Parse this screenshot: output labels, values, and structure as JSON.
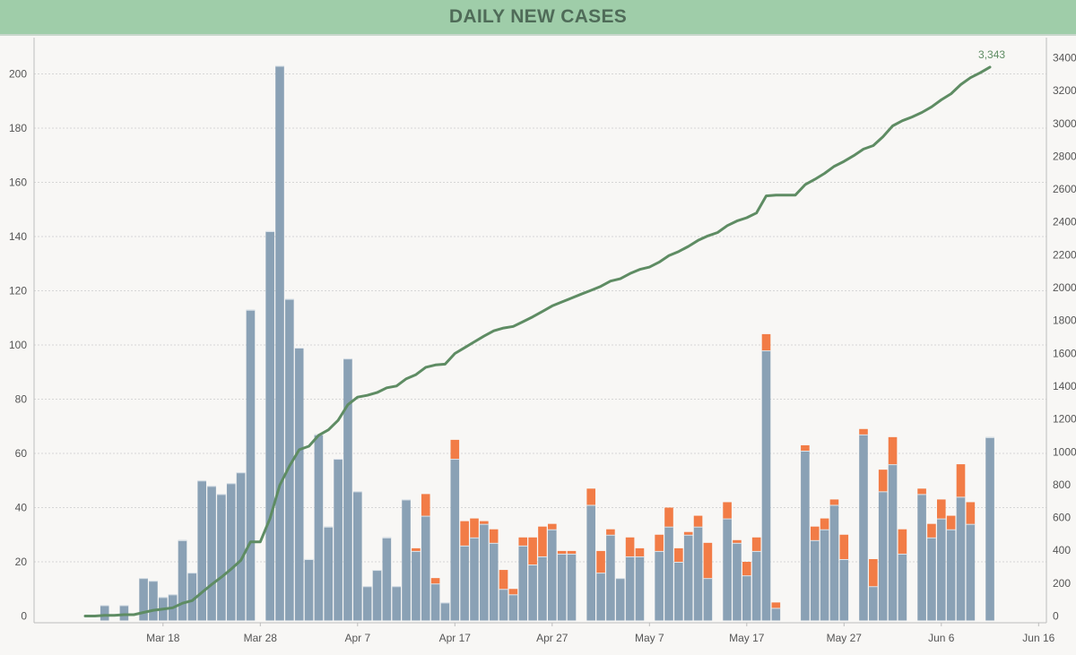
{
  "title": "DAILY NEW CASES",
  "chart_data": {
    "type": "bar",
    "title": "DAILY NEW CASES",
    "x_start": "Mar 10",
    "x_tick_labels": [
      "Mar 18",
      "Mar 28",
      "Apr 7",
      "Apr 17",
      "Apr 27",
      "May 7",
      "May 17",
      "May 27",
      "Jun 6",
      "Jun 16"
    ],
    "ylim_left": [
      0,
      210
    ],
    "yticks_left": [
      0,
      20,
      40,
      60,
      80,
      100,
      120,
      140,
      160,
      180,
      200
    ],
    "ylim_right": [
      0,
      3500
    ],
    "yticks_right": [
      0,
      200,
      400,
      600,
      800,
      1000,
      1200,
      1400,
      1600,
      1800,
      2000,
      2200,
      2400,
      2600,
      2800,
      3000,
      3200,
      3400
    ],
    "grid": true,
    "colors": {
      "bars_primary": "#8aa1b5",
      "bars_secondary": "#f27c46",
      "line": "#5e8c63",
      "header": "#9fcda9"
    },
    "series": [
      {
        "values": [
          0,
          0,
          4,
          0,
          4,
          0,
          14,
          13,
          7,
          8,
          28,
          16,
          50,
          48,
          45,
          49,
          53,
          113,
          0,
          142,
          203,
          117,
          99,
          21,
          67,
          33,
          58,
          95,
          46,
          11,
          17,
          29,
          11,
          43,
          24,
          37,
          12,
          5,
          58,
          26,
          29,
          34,
          27,
          10,
          8,
          26,
          19,
          22,
          32,
          23,
          23,
          0,
          41,
          16,
          30,
          14,
          22,
          22,
          0,
          24,
          33,
          20,
          30,
          33,
          14,
          0,
          36,
          27,
          15,
          24,
          98,
          3,
          0,
          0,
          61,
          28,
          32,
          41,
          21,
          0,
          67,
          11,
          46,
          56,
          23,
          0,
          45,
          29,
          36,
          32,
          44,
          34,
          0,
          66
        ]
      },
      {
        "values": [
          0,
          0,
          0,
          0,
          0,
          0,
          0,
          0,
          0,
          0,
          0,
          0,
          0,
          0,
          0,
          0,
          0,
          0,
          0,
          0,
          0,
          0,
          0,
          0,
          0,
          0,
          0,
          0,
          0,
          0,
          0,
          0,
          0,
          0,
          1,
          8,
          2,
          0,
          7,
          9,
          7,
          1,
          5,
          7,
          2,
          3,
          10,
          11,
          2,
          1,
          1,
          0,
          6,
          8,
          2,
          0,
          7,
          3,
          0,
          6,
          7,
          5,
          1,
          4,
          13,
          0,
          6,
          1,
          5,
          5,
          6,
          2,
          0,
          0,
          2,
          5,
          4,
          2,
          9,
          0,
          2,
          10,
          8,
          10,
          9,
          0,
          2,
          5,
          7,
          5,
          12,
          8,
          0,
          0
        ]
      },
      {
        "type": "line",
        "values": [
          0,
          0,
          4,
          4,
          8,
          8,
          22,
          35,
          42,
          50,
          78,
          94,
          144,
          192,
          237,
          286,
          339,
          452,
          452,
          594,
          797,
          914,
          1013,
          1034,
          1101,
          1134,
          1192,
          1287,
          1333,
          1344,
          1361,
          1390,
          1401,
          1445,
          1470,
          1515,
          1529,
          1534,
          1599,
          1634,
          1670,
          1705,
          1737,
          1754,
          1764,
          1793,
          1822,
          1855,
          1889,
          1913,
          1937,
          1961,
          1984,
          2008,
          2040,
          2054,
          2086,
          2111,
          2125,
          2155,
          2195,
          2220,
          2251,
          2288,
          2315,
          2336,
          2378,
          2406,
          2426,
          2455,
          2559,
          2564,
          2564,
          2564,
          2627,
          2660,
          2696,
          2739,
          2769,
          2804,
          2844,
          2865,
          2919,
          2985,
          3017,
          3040,
          3067,
          3101,
          3144,
          3181,
          3237,
          3279,
          3309,
          3343
        ],
        "end_label": "3,343"
      }
    ]
  }
}
